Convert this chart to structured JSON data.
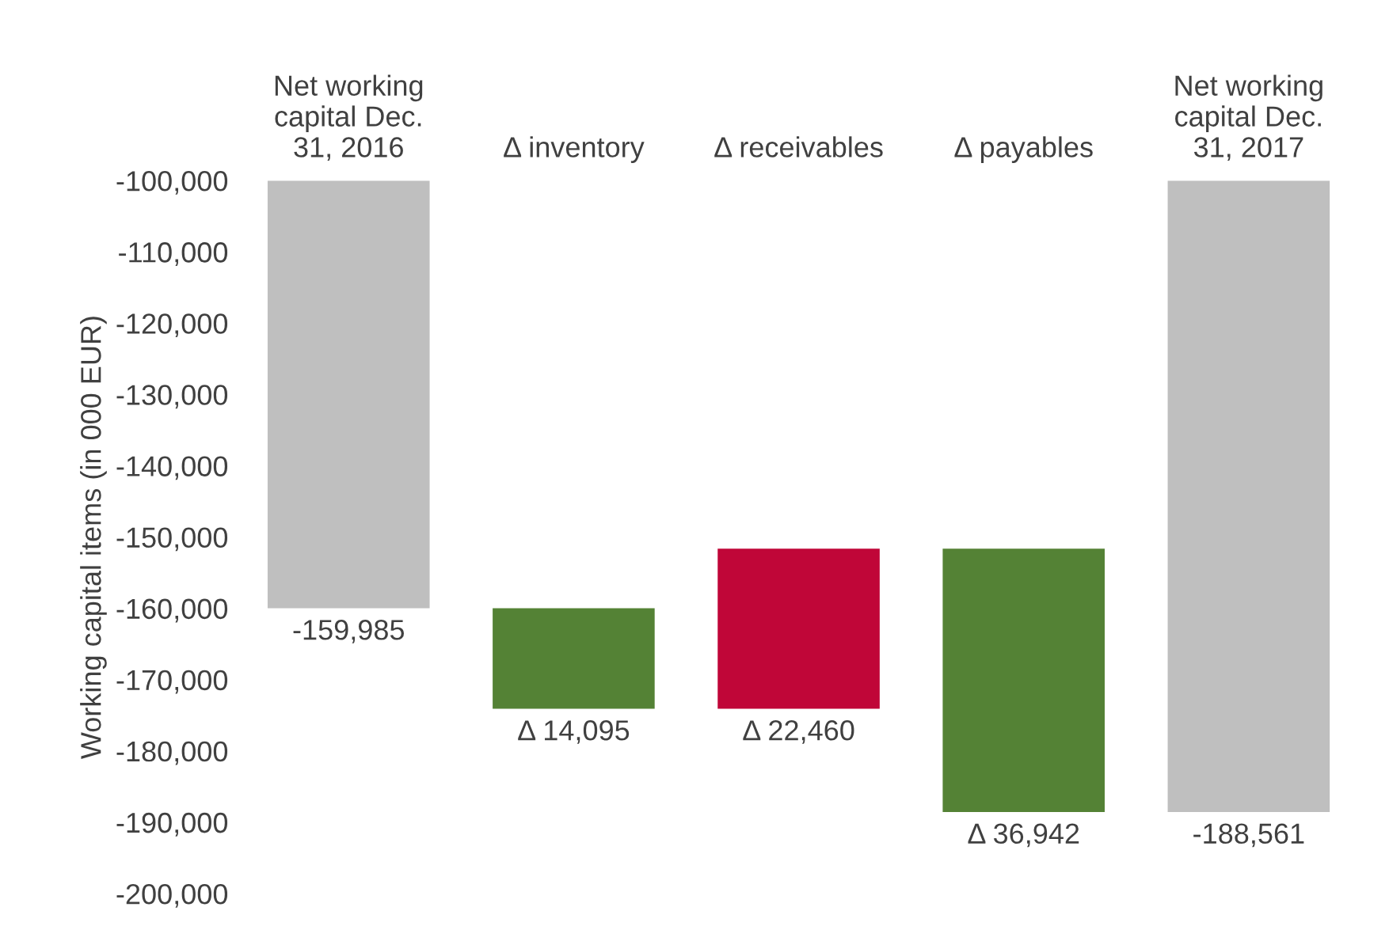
{
  "chart_data": {
    "type": "bar",
    "ylabel": "Working capital items (in 000 EUR)",
    "categories": [
      "Net working\ncapital Dec.\n31, 2016",
      "Δ inventory",
      "Δ receivables",
      "Δ payables",
      "Net working\ncapital Dec.\n31, 2017"
    ],
    "base": [
      -100000,
      -159985,
      -174080,
      -151620,
      -100000
    ],
    "values": [
      -59985,
      -14095,
      22460,
      -36942,
      -88561
    ],
    "colors": [
      "#bfbfbf",
      "#548235",
      "#c00638",
      "#548235",
      "#bfbfbf"
    ],
    "value_labels": [
      "-159,985",
      "Δ 14,095",
      "Δ 22,460",
      "Δ 36,942",
      "-188,561"
    ],
    "ylim": [
      -200000,
      -100000
    ],
    "yticks": [
      {
        "value": -100000,
        "label": "-100,000"
      },
      {
        "value": -110000,
        "label": "-110,000"
      },
      {
        "value": -120000,
        "label": "-120,000"
      },
      {
        "value": -130000,
        "label": "-130,000"
      },
      {
        "value": -140000,
        "label": "-140,000"
      },
      {
        "value": -150000,
        "label": "-150,000"
      },
      {
        "value": -160000,
        "label": "-160,000"
      },
      {
        "value": -170000,
        "label": "-170,000"
      },
      {
        "value": -180000,
        "label": "-180,000"
      },
      {
        "value": -190000,
        "label": "-190,000"
      },
      {
        "value": -200000,
        "label": "-200,000"
      }
    ],
    "grid": false
  }
}
